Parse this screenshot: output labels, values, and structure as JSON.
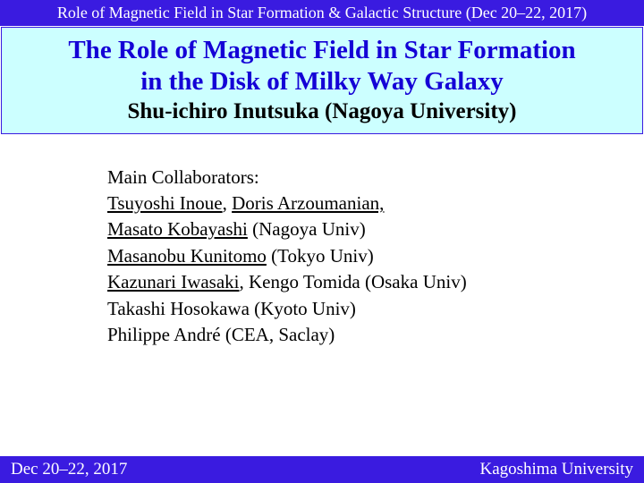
{
  "header": {
    "banner": "Role of Magnetic Field in Star Formation & Galactic Structure (Dec 20–22, 2017)"
  },
  "title": {
    "line1": "The Role of Magnetic Field in Star Formation",
    "line2": "in the Disk of  Milky Way Galaxy",
    "author": "Shu-ichiro Inutsuka (Nagoya University)"
  },
  "collab": {
    "heading": "Main Collaborators:",
    "n1": "Tsuyoshi Inoue",
    "sep1": ", ",
    "n2": "Doris Arzoumanian,",
    "n3": "Masato Kobayashi",
    "aff3": " (Nagoya Univ)",
    "n4": "Masanobu Kunitomo",
    "aff4": " (Tokyo Univ)",
    "n5": "Kazunari Iwasaki",
    "sep5": ", Kengo Tomida (Osaka Univ)",
    "l6": "Takashi Hosokawa (Kyoto Univ)",
    "l7": "Philippe André (CEA, Saclay)"
  },
  "footer": {
    "left": "Dec 20–22, 2017",
    "right": "Kagoshima University"
  },
  "colors": {
    "bar_bg": "#3a1be0",
    "bar_text": "#ffffff",
    "title_bg": "#ccffff",
    "title_text": "#1400d6",
    "body_text": "#000000"
  }
}
